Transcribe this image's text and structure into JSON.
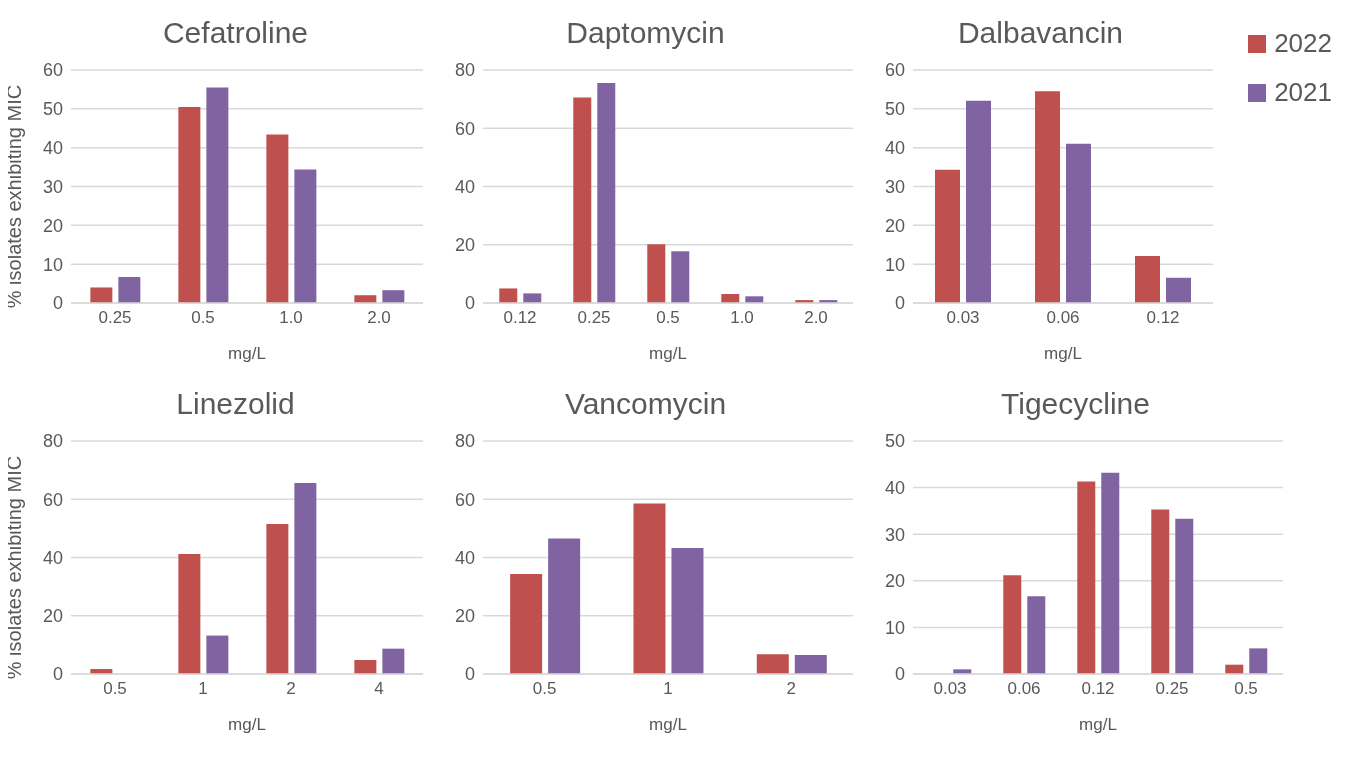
{
  "chart_data": [
    {
      "type": "bar",
      "title": "Cefatroline",
      "xlabel": "mg/L",
      "ylabel": "% isolates exhibiting MIC",
      "categories": [
        "0.25",
        "0.5",
        "1.0",
        "2.0"
      ],
      "series": [
        {
          "color": "#c0504d",
          "values": [
            4,
            50.5,
            43.4,
            2
          ]
        },
        {
          "color": "#8064a2",
          "values": [
            6.7,
            55.5,
            34.4,
            3.3
          ]
        }
      ],
      "ylim": [
        0,
        60
      ],
      "yticks": [
        0,
        10,
        20,
        30,
        40,
        50,
        60
      ],
      "grid": "y"
    },
    {
      "type": "bar",
      "title": "Daptomycin",
      "xlabel": "mg/L",
      "categories": [
        "0.12",
        "0.25",
        "0.5",
        "1.0",
        "2.0"
      ],
      "series": [
        {
          "color": "#c0504d",
          "values": [
            5,
            70.6,
            20.2,
            3.1,
            1
          ]
        },
        {
          "color": "#8064a2",
          "values": [
            3.3,
            75.5,
            17.8,
            2.3,
            1
          ]
        }
      ],
      "ylim": [
        0,
        80
      ],
      "yticks": [
        0,
        20,
        40,
        60,
        80
      ],
      "grid": "y"
    },
    {
      "type": "bar",
      "title": "Dalbavancin",
      "xlabel": "mg/L",
      "categories": [
        "0.03",
        "0.06",
        "0.12"
      ],
      "series": [
        {
          "name": "2022",
          "color": "#c0504d",
          "values": [
            34.3,
            54.5,
            12.1
          ]
        },
        {
          "name": "2021",
          "color": "#8064a2",
          "values": [
            52.1,
            41,
            6.5
          ]
        }
      ],
      "ylim": [
        0,
        60
      ],
      "yticks": [
        0,
        10,
        20,
        30,
        40,
        50,
        60
      ],
      "grid": "y",
      "legend": "top right"
    },
    {
      "type": "bar",
      "title": "Linezolid",
      "xlabel": "mg/L",
      "ylabel": "% isolates exhibiting MIC",
      "categories": [
        "0.5",
        "1",
        "2",
        "4"
      ],
      "series": [
        {
          "color": "#c0504d",
          "values": [
            1.7,
            41.2,
            51.5,
            4.8
          ]
        },
        {
          "color": "#8064a2",
          "values": [
            0,
            13.2,
            65.6,
            8.7
          ]
        }
      ],
      "ylim": [
        0,
        80
      ],
      "yticks": [
        0,
        20,
        40,
        60,
        80
      ],
      "grid": "y"
    },
    {
      "type": "bar",
      "title": "Vancomycin",
      "xlabel": "mg/L",
      "categories": [
        "0.5",
        "1",
        "2"
      ],
      "series": [
        {
          "color": "#c0504d",
          "values": [
            34.3,
            58.5,
            6.8
          ]
        },
        {
          "color": "#8064a2",
          "values": [
            46.5,
            43.3,
            6.5
          ]
        }
      ],
      "ylim": [
        0,
        80
      ],
      "yticks": [
        0,
        20,
        40,
        60,
        80
      ],
      "grid": "y"
    },
    {
      "type": "bar",
      "title": "Tigecycline",
      "xlabel": "mg/L",
      "categories": [
        "0.03",
        "0.06",
        "0.12",
        "0.25",
        "0.5"
      ],
      "series": [
        {
          "color": "#c0504d",
          "values": [
            0,
            21.2,
            41.3,
            35.3,
            2
          ]
        },
        {
          "color": "#8064a2",
          "values": [
            1,
            16.7,
            43.2,
            33.3,
            5.5
          ]
        }
      ],
      "ylim": [
        0,
        50
      ],
      "yticks": [
        0,
        10,
        20,
        30,
        40,
        50
      ],
      "grid": "y"
    }
  ]
}
